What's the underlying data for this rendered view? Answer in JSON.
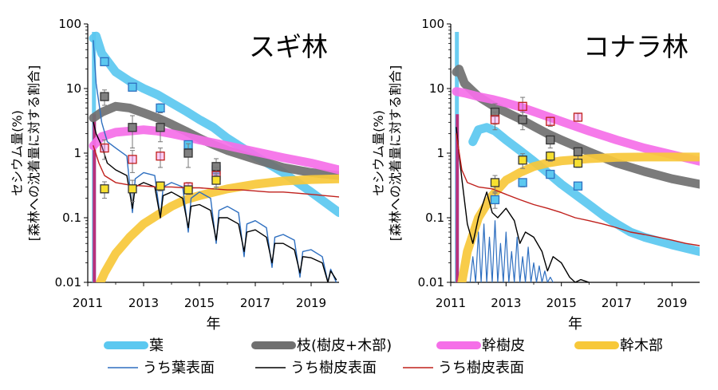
{
  "figure": {
    "ylabel_line1": "セシウム量(%)",
    "ylabel_line2": "[森林への沈着量に対する割合]",
    "xlabel": "年",
    "legend": [
      {
        "label": "葉",
        "color": "#5bc8f0",
        "kind": "thick"
      },
      {
        "label": "枝(樹皮+木部)",
        "color": "#707070",
        "kind": "thick"
      },
      {
        "label": "幹樹皮",
        "color": "#f56fe8",
        "kind": "thick"
      },
      {
        "label": "幹木部",
        "color": "#f7c83a",
        "kind": "thick"
      },
      {
        "label": "うち葉表面",
        "color": "#2e6fc0",
        "kind": "thin"
      },
      {
        "label": "うち樹皮表面",
        "color": "#000000",
        "kind": "thin"
      },
      {
        "label": "うち樹皮表面",
        "color": "#c0201c",
        "kind": "thin"
      }
    ]
  },
  "chart_data": [
    {
      "type": "line",
      "title": "スギ林",
      "xlim": [
        2011,
        2020
      ],
      "ylim": [
        0.01,
        100
      ],
      "yscale": "log",
      "xticks": [
        "2011",
        "2013",
        "2015",
        "2017",
        "2019"
      ],
      "yticks": [
        "0.01",
        "0.1",
        "1",
        "10",
        "100"
      ],
      "series": [
        {
          "name": "葉",
          "color": "#5bc8f0",
          "width": 11,
          "x": [
            2011.2,
            2011.3,
            2011.5,
            2012,
            2012.5,
            2013,
            2013.5,
            2014,
            2014.5,
            2015,
            2015.5,
            2016,
            2017,
            2018,
            2019,
            2020
          ],
          "y": [
            60,
            65,
            35,
            18,
            13,
            10,
            8,
            6,
            4.5,
            3.3,
            2.5,
            1.7,
            0.9,
            0.5,
            0.25,
            0.12
          ]
        },
        {
          "name": "枝(樹皮+木部)",
          "color": "#707070",
          "width": 11,
          "x": [
            2011.2,
            2011.5,
            2012,
            2012.5,
            2013,
            2013.5,
            2014,
            2014.5,
            2015,
            2015.5,
            2016,
            2017,
            2018,
            2019,
            2020
          ],
          "y": [
            3.5,
            4.3,
            5.3,
            5.0,
            4.2,
            3.5,
            2.8,
            2.2,
            1.7,
            1.35,
            1.1,
            0.8,
            0.6,
            0.5,
            0.45
          ]
        },
        {
          "name": "幹樹皮",
          "color": "#f56fe8",
          "width": 11,
          "x": [
            2011.2,
            2011.5,
            2012,
            2012.5,
            2013,
            2013.5,
            2014,
            2014.5,
            2015,
            2016,
            2017,
            2018,
            2019,
            2020
          ],
          "y": [
            1.3,
            1.8,
            2.1,
            2.2,
            2.3,
            2.2,
            2.0,
            1.8,
            1.6,
            1.3,
            1.05,
            0.85,
            0.7,
            0.55
          ]
        },
        {
          "name": "幹木部",
          "color": "#f7c83a",
          "width": 11,
          "x": [
            2011.45,
            2011.6,
            2012,
            2012.5,
            2013,
            2013.5,
            2014,
            2014.5,
            2015,
            2016,
            2017,
            2018,
            2019,
            2020
          ],
          "y": [
            0.01,
            0.014,
            0.028,
            0.05,
            0.08,
            0.11,
            0.15,
            0.19,
            0.22,
            0.28,
            0.33,
            0.37,
            0.39,
            0.4
          ]
        },
        {
          "name": "うち葉表面",
          "color": "#2e6fc0",
          "width": 1.4,
          "x": [
            2011.2,
            2011.3,
            2011.5,
            2011.7,
            2012,
            2012.4,
            2012.6,
            2012.7,
            2013,
            2013.4,
            2013.6,
            2013.7,
            2014,
            2014.4,
            2014.6,
            2014.7,
            2015,
            2015.4,
            2015.6,
            2015.7,
            2016,
            2016.4,
            2016.6,
            2016.7,
            2017,
            2017.4,
            2017.6,
            2017.7,
            2018,
            2018.4,
            2018.6,
            2018.7,
            2019,
            2019.4,
            2019.6,
            2019.7,
            2019.9
          ],
          "y": [
            55,
            12,
            3,
            1.5,
            1.2,
            0.9,
            0.12,
            0.4,
            0.5,
            0.45,
            0.1,
            0.3,
            0.35,
            0.3,
            0.06,
            0.2,
            0.25,
            0.2,
            0.04,
            0.13,
            0.15,
            0.12,
            0.025,
            0.08,
            0.09,
            0.07,
            0.017,
            0.05,
            0.055,
            0.045,
            0.012,
            0.03,
            0.032,
            0.025,
            0.01,
            0.016,
            0.01
          ]
        },
        {
          "name": "うち樹皮表面",
          "color": "#000000",
          "width": 1.4,
          "x": [
            2011.2,
            2011.3,
            2011.5,
            2011.7,
            2012,
            2012.4,
            2012.6,
            2012.7,
            2013,
            2013.4,
            2013.6,
            2013.7,
            2014,
            2014.4,
            2014.6,
            2014.7,
            2015,
            2015.4,
            2015.6,
            2015.7,
            2016,
            2016.4,
            2016.6,
            2016.7,
            2017,
            2017.4,
            2017.6,
            2017.7,
            2018,
            2018.4,
            2018.6,
            2018.7,
            2019,
            2019.4,
            2019.6,
            2019.7,
            2019.9
          ],
          "y": [
            3,
            2,
            1.3,
            0.7,
            0.55,
            0.45,
            0.14,
            0.3,
            0.35,
            0.3,
            0.1,
            0.22,
            0.25,
            0.2,
            0.07,
            0.15,
            0.16,
            0.13,
            0.045,
            0.1,
            0.1,
            0.08,
            0.03,
            0.06,
            0.065,
            0.05,
            0.02,
            0.04,
            0.04,
            0.032,
            0.014,
            0.025,
            0.024,
            0.02,
            0.01,
            0.015,
            0.011
          ]
        },
        {
          "name": "うち樹皮表面",
          "color": "#c0201c",
          "width": 1.4,
          "x": [
            2011.2,
            2011.4,
            2011.6,
            2012,
            2012.5,
            2013,
            2013.5,
            2014,
            2014.5,
            2015,
            2015.5,
            2016,
            2016.5,
            2017,
            2017.5,
            2018,
            2018.5,
            2019,
            2019.5,
            2020
          ],
          "y": [
            1.3,
            0.7,
            0.45,
            0.35,
            0.32,
            0.31,
            0.3,
            0.3,
            0.29,
            0.29,
            0.28,
            0.27,
            0.27,
            0.26,
            0.25,
            0.25,
            0.24,
            0.23,
            0.22,
            0.21
          ]
        }
      ],
      "observations": [
        {
          "series": "葉",
          "color": "#5bc8f0",
          "points": [
            {
              "x": 2011.6,
              "y": 26,
              "err": 2
            },
            {
              "x": 2012.6,
              "y": 10.5,
              "err": 1
            },
            {
              "x": 2013.6,
              "y": 5,
              "err": 0.8
            },
            {
              "x": 2014.6,
              "y": 1.35,
              "err": 0.2
            },
            {
              "x": 2015.6,
              "y": 0.55,
              "err": 0.1
            }
          ]
        },
        {
          "series": "枝(樹皮+木部)",
          "color": "#808080",
          "points": [
            {
              "x": 2011.6,
              "y": 7.5,
              "err": 2
            },
            {
              "x": 2012.6,
              "y": 2.5,
              "err": 1.3
            },
            {
              "x": 2013.6,
              "y": 2.5,
              "err": 1
            },
            {
              "x": 2014.6,
              "y": 1.0,
              "err": 0.4
            },
            {
              "x": 2015.6,
              "y": 0.62,
              "err": 0.2
            }
          ]
        },
        {
          "series": "幹樹皮",
          "color": "#f56fe8",
          "points": [
            {
              "x": 2011.6,
              "y": 1.2,
              "err": 0.4
            },
            {
              "x": 2012.6,
              "y": 0.8,
              "err": 0.3
            },
            {
              "x": 2013.6,
              "y": 0.9,
              "err": 0.3
            },
            {
              "x": 2014.6,
              "y": 0.3,
              "err": 0.05
            },
            {
              "x": 2015.6,
              "y": 0.45,
              "err": 0.15
            }
          ]
        },
        {
          "series": "幹木部",
          "color": "#f7e030",
          "points": [
            {
              "x": 2011.6,
              "y": 0.28,
              "err": 0.08
            },
            {
              "x": 2012.6,
              "y": 0.28,
              "err": 0.1
            },
            {
              "x": 2013.6,
              "y": 0.31,
              "err": 0.05
            },
            {
              "x": 2014.6,
              "y": 0.27,
              "err": 0.04
            },
            {
              "x": 2015.6,
              "y": 0.38,
              "err": 0.1
            }
          ]
        }
      ]
    },
    {
      "type": "line",
      "title": "コナラ林",
      "xlim": [
        2011,
        2020
      ],
      "ylim": [
        0.01,
        100
      ],
      "yscale": "log",
      "xticks": [
        "2011",
        "2013",
        "2015",
        "2017",
        "2019"
      ],
      "yticks": [
        "0.01",
        "0.1",
        "1",
        "10",
        "100"
      ],
      "series": [
        {
          "name": "葉",
          "color": "#5bc8f0",
          "width": 11,
          "x": [
            2011.8,
            2012,
            2012.3,
            2012.6,
            2013,
            2013.5,
            2014,
            2014.5,
            2015,
            2015.5,
            2016,
            2016.5,
            2017,
            2017.5,
            2018,
            2019,
            2020
          ],
          "y": [
            1.5,
            2.3,
            2.5,
            2.2,
            1.6,
            1.1,
            0.75,
            0.5,
            0.33,
            0.23,
            0.16,
            0.11,
            0.08,
            0.06,
            0.05,
            0.038,
            0.03
          ]
        },
        {
          "name": "枝(樹皮+木部)",
          "color": "#707070",
          "width": 11,
          "x": [
            2011.2,
            2011.3,
            2011.5,
            2012,
            2012.5,
            2013,
            2013.5,
            2014,
            2014.5,
            2015,
            2016,
            2017,
            2018,
            2019,
            2020
          ],
          "y": [
            18,
            20,
            12,
            7.5,
            5.5,
            4.3,
            3.4,
            2.6,
            2.0,
            1.6,
            1.05,
            0.7,
            0.52,
            0.4,
            0.33
          ]
        },
        {
          "name": "幹樹皮",
          "color": "#f56fe8",
          "width": 11,
          "x": [
            2011.2,
            2011.5,
            2012,
            2012.5,
            2013,
            2013.5,
            2014,
            2014.5,
            2015,
            2016,
            2017,
            2018,
            2019,
            2020
          ],
          "y": [
            9,
            8.5,
            7.5,
            6.8,
            6,
            5.2,
            4.4,
            3.7,
            3.1,
            2.2,
            1.6,
            1.2,
            0.95,
            0.75
          ]
        },
        {
          "name": "幹木部",
          "color": "#f7c83a",
          "width": 11,
          "x": [
            2011.4,
            2011.6,
            2012,
            2012.5,
            2013,
            2013.5,
            2014,
            2014.5,
            2015,
            2016,
            2017,
            2018,
            2019,
            2020
          ],
          "y": [
            0.01,
            0.03,
            0.1,
            0.22,
            0.38,
            0.5,
            0.62,
            0.7,
            0.76,
            0.82,
            0.86,
            0.87,
            0.87,
            0.87
          ]
        },
        {
          "name": "うち葉表面",
          "color": "#2e6fc0",
          "width": 1.2,
          "x": [
            2011.7,
            2011.8,
            2011.9,
            2012.0,
            2012.1,
            2012.2,
            2012.3,
            2012.4,
            2012.5,
            2012.6,
            2012.7,
            2012.8,
            2012.9,
            2013.0,
            2013.1,
            2013.2,
            2013.3,
            2013.4,
            2013.5,
            2013.6,
            2013.7,
            2013.8,
            2013.9,
            2014.0,
            2014.1,
            2014.2,
            2014.3,
            2014.4,
            2014.5,
            2014.6,
            2014.7
          ],
          "y": [
            0.01,
            0.025,
            0.01,
            0.06,
            0.01,
            0.08,
            0.01,
            0.05,
            0.01,
            0.09,
            0.01,
            0.04,
            0.01,
            0.06,
            0.01,
            0.03,
            0.01,
            0.05,
            0.01,
            0.025,
            0.01,
            0.035,
            0.01,
            0.02,
            0.01,
            0.018,
            0.01,
            0.015,
            0.01,
            0.012,
            0.01
          ]
        },
        {
          "name": "うち樹皮表面",
          "color": "#000000",
          "width": 1.4,
          "x": [
            2011.2,
            2011.4,
            2011.6,
            2011.8,
            2012.0,
            2012.3,
            2012.5,
            2012.7,
            2013.0,
            2013.3,
            2013.5,
            2013.7,
            2014.0,
            2014.3,
            2014.5,
            2014.7,
            2015.0,
            2015.3,
            2015.5,
            2015.7,
            2016.0
          ],
          "y": [
            2.5,
            0.4,
            0.08,
            0.04,
            0.1,
            0.25,
            0.12,
            0.1,
            0.14,
            0.09,
            0.04,
            0.06,
            0.05,
            0.03,
            0.015,
            0.025,
            0.02,
            0.012,
            0.01,
            0.011,
            0.01
          ]
        },
        {
          "name": "うち樹皮表面",
          "color": "#c0201c",
          "width": 1.4,
          "x": [
            2011.2,
            2011.4,
            2011.6,
            2012,
            2012.5,
            2013,
            2013.5,
            2014,
            2014.5,
            2015,
            2015.5,
            2016,
            2016.5,
            2017,
            2017.5,
            2018,
            2018.5,
            2019,
            2019.5,
            2020
          ],
          "y": [
            2.0,
            0.55,
            0.35,
            0.3,
            0.28,
            0.23,
            0.19,
            0.16,
            0.14,
            0.12,
            0.1,
            0.09,
            0.08,
            0.07,
            0.06,
            0.055,
            0.05,
            0.045,
            0.04,
            0.037
          ]
        }
      ],
      "observations": [
        {
          "series": "葉",
          "color": "#5bc8f0",
          "points": [
            {
              "x": 2012.6,
              "y": 0.19,
              "err": 0.05
            },
            {
              "x": 2013.6,
              "y": 0.35,
              "err": 0.05
            },
            {
              "x": 2014.6,
              "y": 0.47,
              "err": 0.05
            },
            {
              "x": 2015.6,
              "y": 0.31,
              "err": 0.04
            }
          ]
        },
        {
          "series": "枝(樹皮+木部)",
          "color": "#808080",
          "points": [
            {
              "x": 2012.6,
              "y": 4.3,
              "err": 1.5
            },
            {
              "x": 2013.6,
              "y": 3.3,
              "err": 1
            },
            {
              "x": 2014.6,
              "y": 1.6,
              "err": 0.4
            },
            {
              "x": 2015.6,
              "y": 1.05,
              "err": 0.3
            }
          ]
        },
        {
          "series": "幹樹皮",
          "color": "#f56fe8",
          "points": [
            {
              "x": 2012.6,
              "y": 3.3,
              "err": 1
            },
            {
              "x": 2013.6,
              "y": 5.3,
              "err": 2
            },
            {
              "x": 2014.6,
              "y": 3.1,
              "err": 0.5
            },
            {
              "x": 2015.6,
              "y": 3.6,
              "err": 0.5
            }
          ]
        },
        {
          "series": "幹木部",
          "color": "#f7e030",
          "points": [
            {
              "x": 2012.6,
              "y": 0.35,
              "err": 0.1
            },
            {
              "x": 2013.6,
              "y": 0.78,
              "err": 0.2
            },
            {
              "x": 2014.6,
              "y": 0.9,
              "err": 0.15
            },
            {
              "x": 2015.6,
              "y": 0.7,
              "err": 0.1
            }
          ]
        }
      ]
    }
  ]
}
